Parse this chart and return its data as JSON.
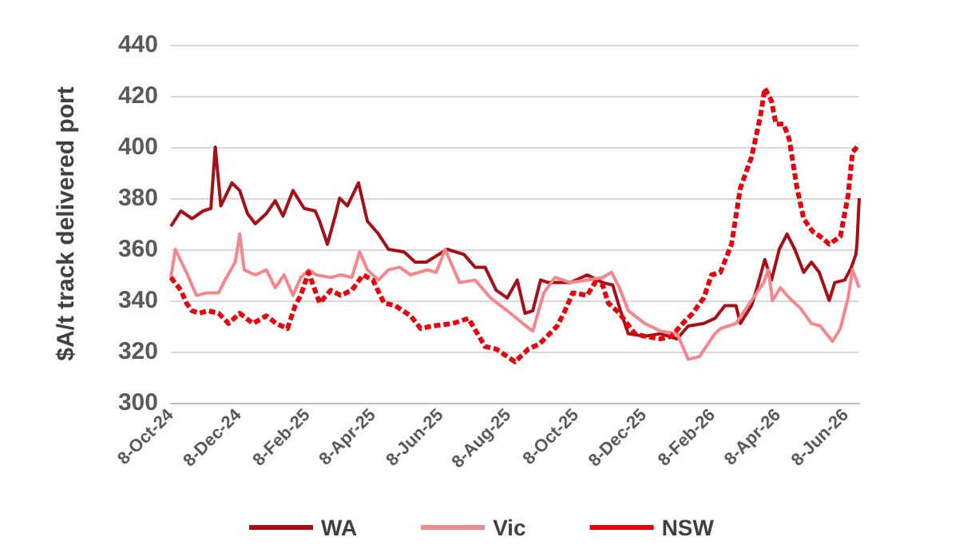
{
  "chart_data": {
    "type": "line",
    "ylabel": "$A/t track delivered port",
    "xlim": [
      "2024-10-08",
      "2026-06-20"
    ],
    "xticks": [
      {
        "value": "2024-10-08",
        "label": "8-Oct-24"
      },
      {
        "value": "2024-12-08",
        "label": "8-Dec-24"
      },
      {
        "value": "2025-02-08",
        "label": "8-Feb-25"
      },
      {
        "value": "2025-04-08",
        "label": "8-Apr-25"
      },
      {
        "value": "2025-06-08",
        "label": "8-Jun-25"
      },
      {
        "value": "2025-08-08",
        "label": "8-Aug-25"
      },
      {
        "value": "2025-10-08",
        "label": "8-Oct-25"
      },
      {
        "value": "2025-12-08",
        "label": "8-Dec-25"
      },
      {
        "value": "2026-02-08",
        "label": "8-Feb-26"
      },
      {
        "value": "2026-04-08",
        "label": "8-Apr-26"
      },
      {
        "value": "2026-06-08",
        "label": "8-Jun-26"
      }
    ],
    "ylim": [
      300,
      440
    ],
    "yticks": [
      300,
      320,
      340,
      360,
      380,
      400,
      420,
      440
    ],
    "grid": "y",
    "legend": "bottom",
    "marker": "none",
    "series": [
      {
        "name": "WA",
        "color": "#a50f15",
        "line_style": "solid",
        "x": [
          "2024-10-08",
          "2024-10-17",
          "2024-10-27",
          "2024-11-06",
          "2024-11-13",
          "2024-11-17",
          "2024-11-22",
          "2024-12-02",
          "2024-12-09",
          "2024-12-16",
          "2024-12-23",
          "2025-01-02",
          "2025-01-10",
          "2025-01-17",
          "2025-01-26",
          "2025-02-05",
          "2025-02-15",
          "2025-02-19",
          "2025-02-26",
          "2025-03-05",
          "2025-03-09",
          "2025-03-16",
          "2025-03-26",
          "2025-04-03",
          "2025-04-13",
          "2025-04-22",
          "2025-05-06",
          "2025-05-16",
          "2025-05-26",
          "2025-06-10",
          "2025-06-14",
          "2025-06-29",
          "2025-07-09",
          "2025-07-18",
          "2025-07-28",
          "2025-08-07",
          "2025-08-16",
          "2025-08-23",
          "2025-08-30",
          "2025-09-06",
          "2025-09-13",
          "2025-10-03",
          "2025-10-18",
          "2025-11-01",
          "2025-11-10",
          "2025-11-17",
          "2025-11-24",
          "2025-12-09",
          "2025-12-23",
          "2026-01-07",
          "2026-01-17",
          "2026-01-31",
          "2026-02-10",
          "2026-02-19",
          "2026-03-01",
          "2026-03-05",
          "2026-03-15",
          "2026-03-20",
          "2026-03-27",
          "2026-04-02",
          "2026-04-09",
          "2026-04-16",
          "2026-04-23",
          "2026-05-01",
          "2026-05-08",
          "2026-05-15",
          "2026-05-24",
          "2026-05-29",
          "2026-06-07",
          "2026-06-13",
          "2026-06-17",
          "2026-06-18",
          "2026-06-20"
        ],
        "values": [
          369,
          375,
          372,
          375,
          376,
          400,
          377,
          386,
          383,
          374,
          370,
          374,
          379,
          373,
          383,
          376,
          375,
          371,
          362,
          373,
          380,
          377,
          386,
          371,
          366,
          360,
          359,
          355,
          355,
          359,
          360,
          358,
          353,
          353,
          344,
          341,
          348,
          335,
          336,
          348,
          347,
          347,
          350,
          347,
          346,
          336,
          327,
          326,
          327,
          325,
          330,
          331,
          333,
          338,
          338,
          331,
          338,
          345,
          356,
          348,
          360,
          366,
          360,
          351,
          355,
          351,
          340,
          347,
          348,
          353,
          358,
          362,
          380
        ]
      },
      {
        "name": "Vic",
        "color": "#f4868c",
        "line_style": "solid",
        "x": [
          "2024-10-08",
          "2024-10-12",
          "2024-10-22",
          "2024-10-31",
          "2024-11-10",
          "2024-11-20",
          "2024-11-27",
          "2024-12-05",
          "2024-12-09",
          "2024-12-13",
          "2024-12-23",
          "2025-01-02",
          "2025-01-10",
          "2025-01-18",
          "2025-01-26",
          "2025-02-02",
          "2025-02-09",
          "2025-02-16",
          "2025-03-01",
          "2025-03-10",
          "2025-03-20",
          "2025-03-27",
          "2025-04-03",
          "2025-04-13",
          "2025-04-22",
          "2025-05-02",
          "2025-05-12",
          "2025-05-27",
          "2025-06-04",
          "2025-06-12",
          "2025-06-25",
          "2025-07-09",
          "2025-07-23",
          "2025-08-07",
          "2025-08-21",
          "2025-08-30",
          "2025-09-09",
          "2025-09-19",
          "2025-10-03",
          "2025-10-18",
          "2025-11-01",
          "2025-11-09",
          "2025-11-16",
          "2025-11-24",
          "2025-12-09",
          "2025-12-23",
          "2026-01-07",
          "2026-01-17",
          "2026-01-27",
          "2026-02-10",
          "2026-02-15",
          "2026-03-01",
          "2026-03-15",
          "2026-03-26",
          "2026-03-30",
          "2026-04-03",
          "2026-04-10",
          "2026-04-18",
          "2026-04-28",
          "2026-05-08",
          "2026-05-16",
          "2026-05-27",
          "2026-06-03",
          "2026-06-10",
          "2026-06-14",
          "2026-06-20"
        ],
        "values": [
          349,
          360,
          351,
          342,
          343,
          343,
          349,
          355,
          366,
          352,
          350,
          352,
          345,
          350,
          342,
          349,
          352,
          350,
          349,
          350,
          349,
          359,
          352,
          348,
          352,
          353,
          350,
          352,
          351,
          360,
          347,
          348,
          341,
          336,
          331,
          328,
          343,
          349,
          347,
          348,
          349,
          351,
          345,
          336,
          331,
          328,
          327,
          317,
          318,
          327,
          329,
          331,
          340,
          347,
          352,
          340,
          345,
          341,
          337,
          331,
          330,
          324,
          329,
          341,
          352,
          345
        ]
      },
      {
        "name": "NSW",
        "color": "#e8000b",
        "line_style": "dashed",
        "x": [
          "2024-10-08",
          "2024-10-17",
          "2024-10-22",
          "2024-10-27",
          "2024-11-03",
          "2024-11-10",
          "2024-11-20",
          "2024-11-29",
          "2024-12-09",
          "2024-12-21",
          "2025-01-02",
          "2025-01-11",
          "2025-01-21",
          "2025-01-28",
          "2025-02-02",
          "2025-02-09",
          "2025-02-19",
          "2025-03-01",
          "2025-03-10",
          "2025-03-20",
          "2025-03-30",
          "2025-04-08",
          "2025-04-18",
          "2025-04-28",
          "2025-05-12",
          "2025-05-21",
          "2025-05-31",
          "2025-06-19",
          "2025-07-03",
          "2025-07-18",
          "2025-07-28",
          "2025-08-14",
          "2025-08-26",
          "2025-09-05",
          "2025-09-21",
          "2025-09-28",
          "2025-10-05",
          "2025-10-18",
          "2025-10-25",
          "2025-11-01",
          "2025-11-06",
          "2025-11-16",
          "2025-11-30",
          "2025-12-09",
          "2025-12-23",
          "2026-01-02",
          "2026-01-12",
          "2026-01-21",
          "2026-01-31",
          "2026-02-07",
          "2026-02-15",
          "2026-02-25",
          "2026-03-05",
          "2026-03-15",
          "2026-03-23",
          "2026-03-27",
          "2026-04-02",
          "2026-04-06",
          "2026-04-13",
          "2026-04-18",
          "2026-04-25",
          "2026-05-01",
          "2026-05-09",
          "2026-05-16",
          "2026-05-24",
          "2026-06-03",
          "2026-06-10",
          "2026-06-14",
          "2026-06-20"
        ],
        "values": [
          349,
          344,
          339,
          336,
          335,
          336,
          335,
          331,
          335,
          331,
          334,
          331,
          329,
          338,
          342,
          351,
          339,
          344,
          342,
          344,
          350,
          348,
          339,
          338,
          334,
          329,
          330,
          331,
          333,
          322,
          321,
          316,
          321,
          323,
          330,
          336,
          343,
          342,
          347,
          346,
          339,
          335,
          327,
          326,
          325,
          326,
          331,
          335,
          341,
          350,
          351,
          362,
          384,
          396,
          412,
          423,
          418,
          409,
          409,
          403,
          384,
          372,
          367,
          365,
          362,
          365,
          381,
          398,
          401
        ]
      }
    ]
  }
}
